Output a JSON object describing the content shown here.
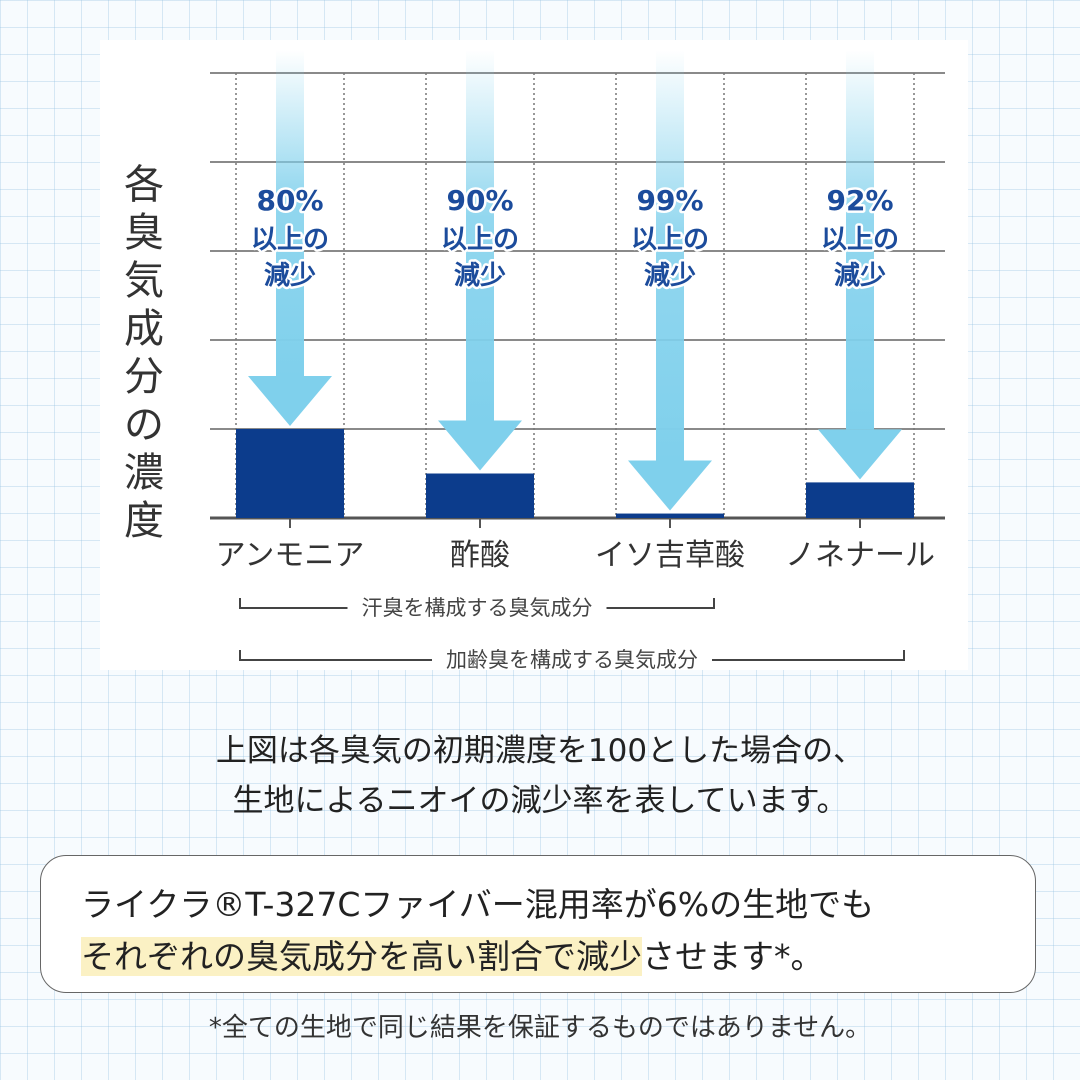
{
  "chart_data": {
    "type": "bar",
    "ylabel": "各臭気成分の濃度",
    "categories": [
      "アンモニア",
      "酢酸",
      "イソ吉草酸",
      "ノネナール"
    ],
    "values": [
      20,
      10,
      1,
      8
    ],
    "ylim": [
      0,
      100
    ],
    "grid": true,
    "bar_color": "#0c3c8c",
    "arrow_color": "#7fd0ec",
    "annotations": [
      {
        "percent": "80%",
        "line1": "以上の",
        "line2": "減少"
      },
      {
        "percent": "90%",
        "line1": "以上の",
        "line2": "減少"
      },
      {
        "percent": "99%",
        "line1": "以上の",
        "line2": "減少"
      },
      {
        "percent": "92%",
        "line1": "以上の",
        "line2": "減少"
      }
    ],
    "groups": [
      {
        "label": "汗臭を構成する臭気成分",
        "from": 0,
        "to": 2
      },
      {
        "label": "加齢臭を構成する臭気成分",
        "from": 0,
        "to": 3
      }
    ]
  },
  "caption": {
    "line1": "上図は各臭気の初期濃度を100とした場合の、",
    "line2": "生地によるニオイの減少率を表しています。"
  },
  "note": {
    "line1": "ライクラ®T-327Cファイバー混用率が6%の生地でも",
    "highlight": "それぞれの臭気成分を高い割合で減少",
    "rest": "させます*。"
  },
  "disclaimer": "*全ての生地で同じ結果を保証するものではありません。"
}
